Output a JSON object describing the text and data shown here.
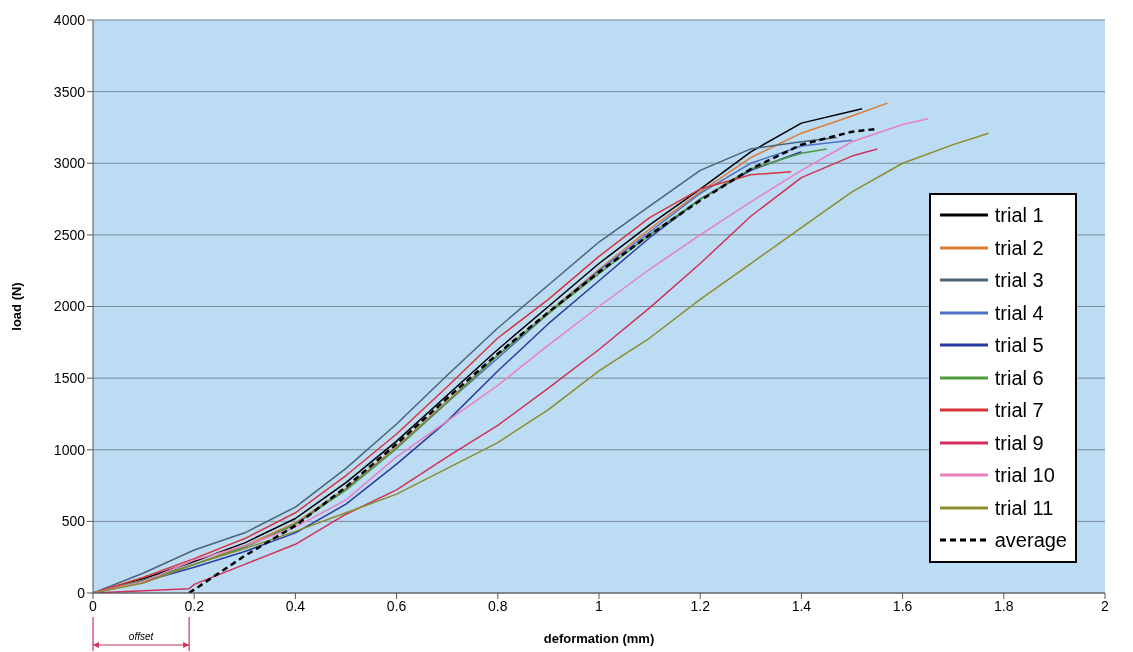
{
  "chart_data": {
    "type": "line",
    "xlabel": "deformation (mm)",
    "ylabel": "load (N)",
    "xlim": [
      0,
      2
    ],
    "xticks": [
      0,
      0.2,
      0.4,
      0.6,
      0.8,
      1,
      1.2,
      1.4,
      1.6,
      1.8,
      2
    ],
    "ylim": [
      0,
      4000
    ],
    "yticks": [
      0,
      500,
      1000,
      1500,
      2000,
      2500,
      3000,
      3500,
      4000
    ],
    "grid": "y",
    "legend": "right",
    "line_style": "solid",
    "annotations": [
      "offset"
    ],
    "series": [
      {
        "name": "trial 1",
        "color": "#000000",
        "x": [
          0,
          0.1,
          0.2,
          0.3,
          0.4,
          0.5,
          0.6,
          0.7,
          0.8,
          0.9,
          1.0,
          1.1,
          1.2,
          1.3,
          1.4,
          1.52
        ],
        "values": [
          0,
          100,
          220,
          350,
          520,
          770,
          1060,
          1380,
          1700,
          2000,
          2300,
          2570,
          2820,
          3080,
          3280,
          3380
        ]
      },
      {
        "name": "trial 2",
        "color": "#e07b39",
        "x": [
          0,
          0.1,
          0.2,
          0.3,
          0.4,
          0.5,
          0.6,
          0.7,
          0.8,
          0.9,
          1.0,
          1.1,
          1.2,
          1.3,
          1.4,
          1.5,
          1.57
        ],
        "values": [
          0,
          90,
          200,
          330,
          490,
          730,
          1020,
          1340,
          1660,
          1960,
          2260,
          2540,
          2800,
          3040,
          3210,
          3330,
          3420
        ]
      },
      {
        "name": "trial 3",
        "color": "#4a6478",
        "x": [
          0,
          0.1,
          0.2,
          0.3,
          0.4,
          0.5,
          0.6,
          0.7,
          0.8,
          0.9,
          1.0,
          1.1,
          1.2,
          1.3,
          1.4,
          1.47
        ],
        "values": [
          0,
          140,
          300,
          420,
          600,
          870,
          1180,
          1520,
          1850,
          2150,
          2450,
          2700,
          2950,
          3100,
          3150,
          3180
        ]
      },
      {
        "name": "trial 4",
        "color": "#4f72c4",
        "x": [
          0,
          0.1,
          0.2,
          0.3,
          0.4,
          0.5,
          0.6,
          0.7,
          0.8,
          0.9,
          1.0,
          1.1,
          1.2,
          1.3,
          1.4,
          1.5
        ],
        "values": [
          0,
          90,
          200,
          320,
          480,
          720,
          1010,
          1330,
          1640,
          1950,
          2250,
          2520,
          2790,
          3000,
          3120,
          3160
        ]
      },
      {
        "name": "trial 5",
        "color": "#2b3aa0",
        "x": [
          0,
          0.1,
          0.2,
          0.3,
          0.4,
          0.5,
          0.6,
          0.7,
          0.8,
          0.9,
          1.0,
          1.1,
          1.2,
          1.3,
          1.4
        ],
        "values": [
          0,
          80,
          180,
          290,
          420,
          620,
          900,
          1200,
          1550,
          1880,
          2180,
          2480,
          2750,
          2950,
          3080
        ]
      },
      {
        "name": "trial 6",
        "color": "#4e9a3c",
        "x": [
          0,
          0.1,
          0.2,
          0.3,
          0.4,
          0.5,
          0.6,
          0.7,
          0.8,
          0.9,
          1.0,
          1.1,
          1.2,
          1.3,
          1.4,
          1.45
        ],
        "values": [
          0,
          90,
          200,
          320,
          480,
          720,
          1010,
          1330,
          1660,
          1950,
          2230,
          2500,
          2750,
          2960,
          3070,
          3100
        ]
      },
      {
        "name": "trial 7",
        "color": "#d8343a",
        "x": [
          0,
          0.1,
          0.2,
          0.3,
          0.4,
          0.5,
          0.6,
          0.7,
          0.8,
          0.9,
          1.0,
          1.1,
          1.2,
          1.3,
          1.38
        ],
        "values": [
          0,
          110,
          240,
          380,
          560,
          820,
          1110,
          1440,
          1780,
          2050,
          2350,
          2620,
          2820,
          2920,
          2940
        ]
      },
      {
        "name": "trial 9",
        "color": "#d0305a",
        "x": [
          0,
          0.19,
          0.2,
          0.3,
          0.4,
          0.5,
          0.6,
          0.7,
          0.8,
          0.9,
          1.0,
          1.1,
          1.2,
          1.3,
          1.4,
          1.5,
          1.55
        ],
        "values": [
          0,
          30,
          60,
          200,
          340,
          550,
          720,
          950,
          1170,
          1430,
          1700,
          1990,
          2300,
          2630,
          2900,
          3050,
          3100
        ]
      },
      {
        "name": "trial 10",
        "color": "#e880c0",
        "x": [
          0,
          0.1,
          0.2,
          0.3,
          0.4,
          0.5,
          0.6,
          0.7,
          0.8,
          0.9,
          1.0,
          1.1,
          1.2,
          1.3,
          1.4,
          1.5,
          1.6,
          1.65
        ],
        "values": [
          0,
          80,
          230,
          330,
          460,
          650,
          950,
          1200,
          1450,
          1730,
          2000,
          2260,
          2500,
          2730,
          2950,
          3150,
          3270,
          3310
        ]
      },
      {
        "name": "trial 11",
        "color": "#8c8c2c",
        "x": [
          0,
          0.1,
          0.2,
          0.3,
          0.4,
          0.5,
          0.6,
          0.7,
          0.8,
          0.9,
          1.0,
          1.1,
          1.2,
          1.3,
          1.4,
          1.5,
          1.6,
          1.7,
          1.77
        ],
        "values": [
          0,
          70,
          200,
          310,
          430,
          560,
          690,
          870,
          1050,
          1280,
          1550,
          1780,
          2050,
          2300,
          2550,
          2800,
          3000,
          3130,
          3210
        ]
      },
      {
        "name": "average",
        "color": "#000000",
        "line_style": "dashed",
        "x": [
          0.19,
          0.3,
          0.4,
          0.5,
          0.6,
          0.7,
          0.8,
          0.9,
          1.0,
          1.1,
          1.2,
          1.3,
          1.4,
          1.5,
          1.55
        ],
        "values": [
          0,
          260,
          470,
          740,
          1040,
          1360,
          1670,
          1960,
          2240,
          2500,
          2740,
          2960,
          3130,
          3220,
          3240
        ]
      }
    ]
  }
}
